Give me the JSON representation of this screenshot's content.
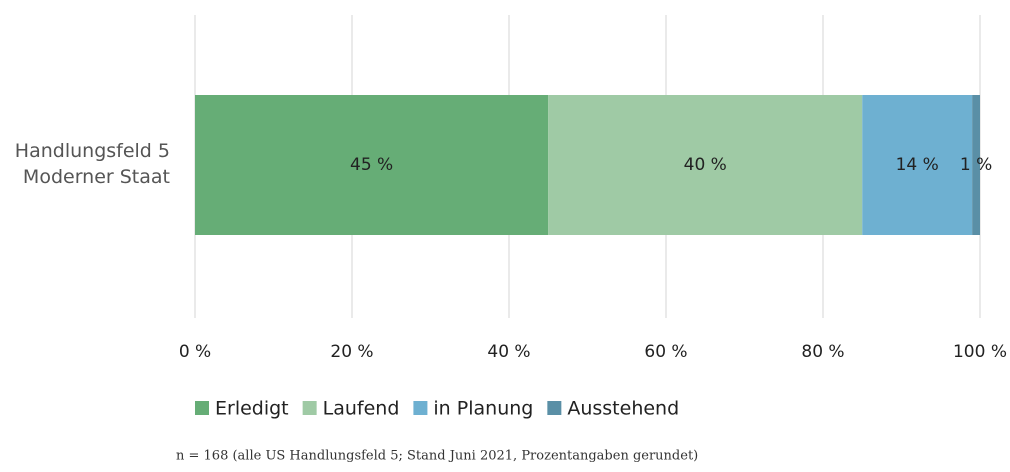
{
  "chart_data": {
    "type": "stacked-barh",
    "categories": [
      "Handlungsfeld 5 Moderner Staat"
    ],
    "series": [
      {
        "name": "Erledigt",
        "color": "#66ad76",
        "values": [
          45
        ],
        "value_labels": [
          "45 %"
        ]
      },
      {
        "name": "Laufend",
        "color": "#9fcaa5",
        "values": [
          40
        ],
        "value_labels": [
          "40 %"
        ]
      },
      {
        "name": "in Planung",
        "color": "#6eb0d1",
        "values": [
          14
        ],
        "value_labels": [
          "14 %"
        ]
      },
      {
        "name": "Ausstehend",
        "color": "#5a8fa6",
        "values": [
          1
        ],
        "value_labels": [
          "1 %"
        ]
      }
    ],
    "xlim": [
      0,
      100
    ],
    "xticks": [
      {
        "value": 0,
        "label": "0 %"
      },
      {
        "value": 20,
        "label": "20 %"
      },
      {
        "value": 40,
        "label": "40 %"
      },
      {
        "value": 60,
        "label": "60 %"
      },
      {
        "value": 80,
        "label": "80 %"
      },
      {
        "value": 100,
        "label": "100 %"
      }
    ],
    "grid": true,
    "legend": "bottom",
    "note": "n = 168 (alle US Handlungsfeld 5; Stand Juni 2021, Prozentangaben gerundet)"
  }
}
